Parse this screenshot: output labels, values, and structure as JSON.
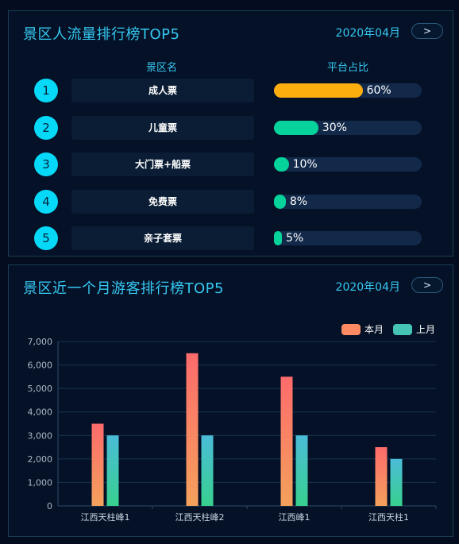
{
  "panel1": {
    "title": "景区人流量排行榜TOP5",
    "date": "2020年04月",
    "next_label": ">",
    "col_name": "景区名",
    "col_ratio": "平台占比",
    "rows": [
      {
        "rank": "1",
        "name": "成人票",
        "ratio": 0.6,
        "ratio_label": "60%",
        "color": "#fdae0f"
      },
      {
        "rank": "2",
        "name": "儿童票",
        "ratio": 0.3,
        "ratio_label": "30%",
        "color": "#05d39b"
      },
      {
        "rank": "3",
        "name": "大门票+船票",
        "ratio": 0.1,
        "ratio_label": "10%",
        "color": "#05d39b"
      },
      {
        "rank": "4",
        "name": "免费票",
        "ratio": 0.08,
        "ratio_label": "8%",
        "color": "#05d39b"
      },
      {
        "rank": "5",
        "name": "亲子套票",
        "ratio": 0.05,
        "ratio_label": "5%",
        "color": "#05d39b"
      }
    ]
  },
  "panel2": {
    "title": "景区近一个月游客排行榜TOP5",
    "date": "2020年04月",
    "next_label": ">"
  },
  "chart_data": {
    "type": "bar",
    "categories": [
      "江西天柱峰1",
      "江西天柱峰2",
      "江西峰1",
      "江西天柱1"
    ],
    "series": [
      {
        "name": "本月",
        "values": [
          3500,
          6500,
          5500,
          2500
        ],
        "color_top": "#fd6b6b",
        "color_bottom": "#f4a15c"
      },
      {
        "name": "上月",
        "values": [
          3000,
          3000,
          3000,
          2000
        ],
        "color_top": "#4bbcd8",
        "color_bottom": "#38d08f"
      }
    ],
    "ylim": [
      0,
      7000
    ],
    "yticks": [
      "0",
      "1,000",
      "2,000",
      "3,000",
      "4,000",
      "5,000",
      "6,000",
      "7,000"
    ],
    "grid": true,
    "legend": "top-right"
  }
}
